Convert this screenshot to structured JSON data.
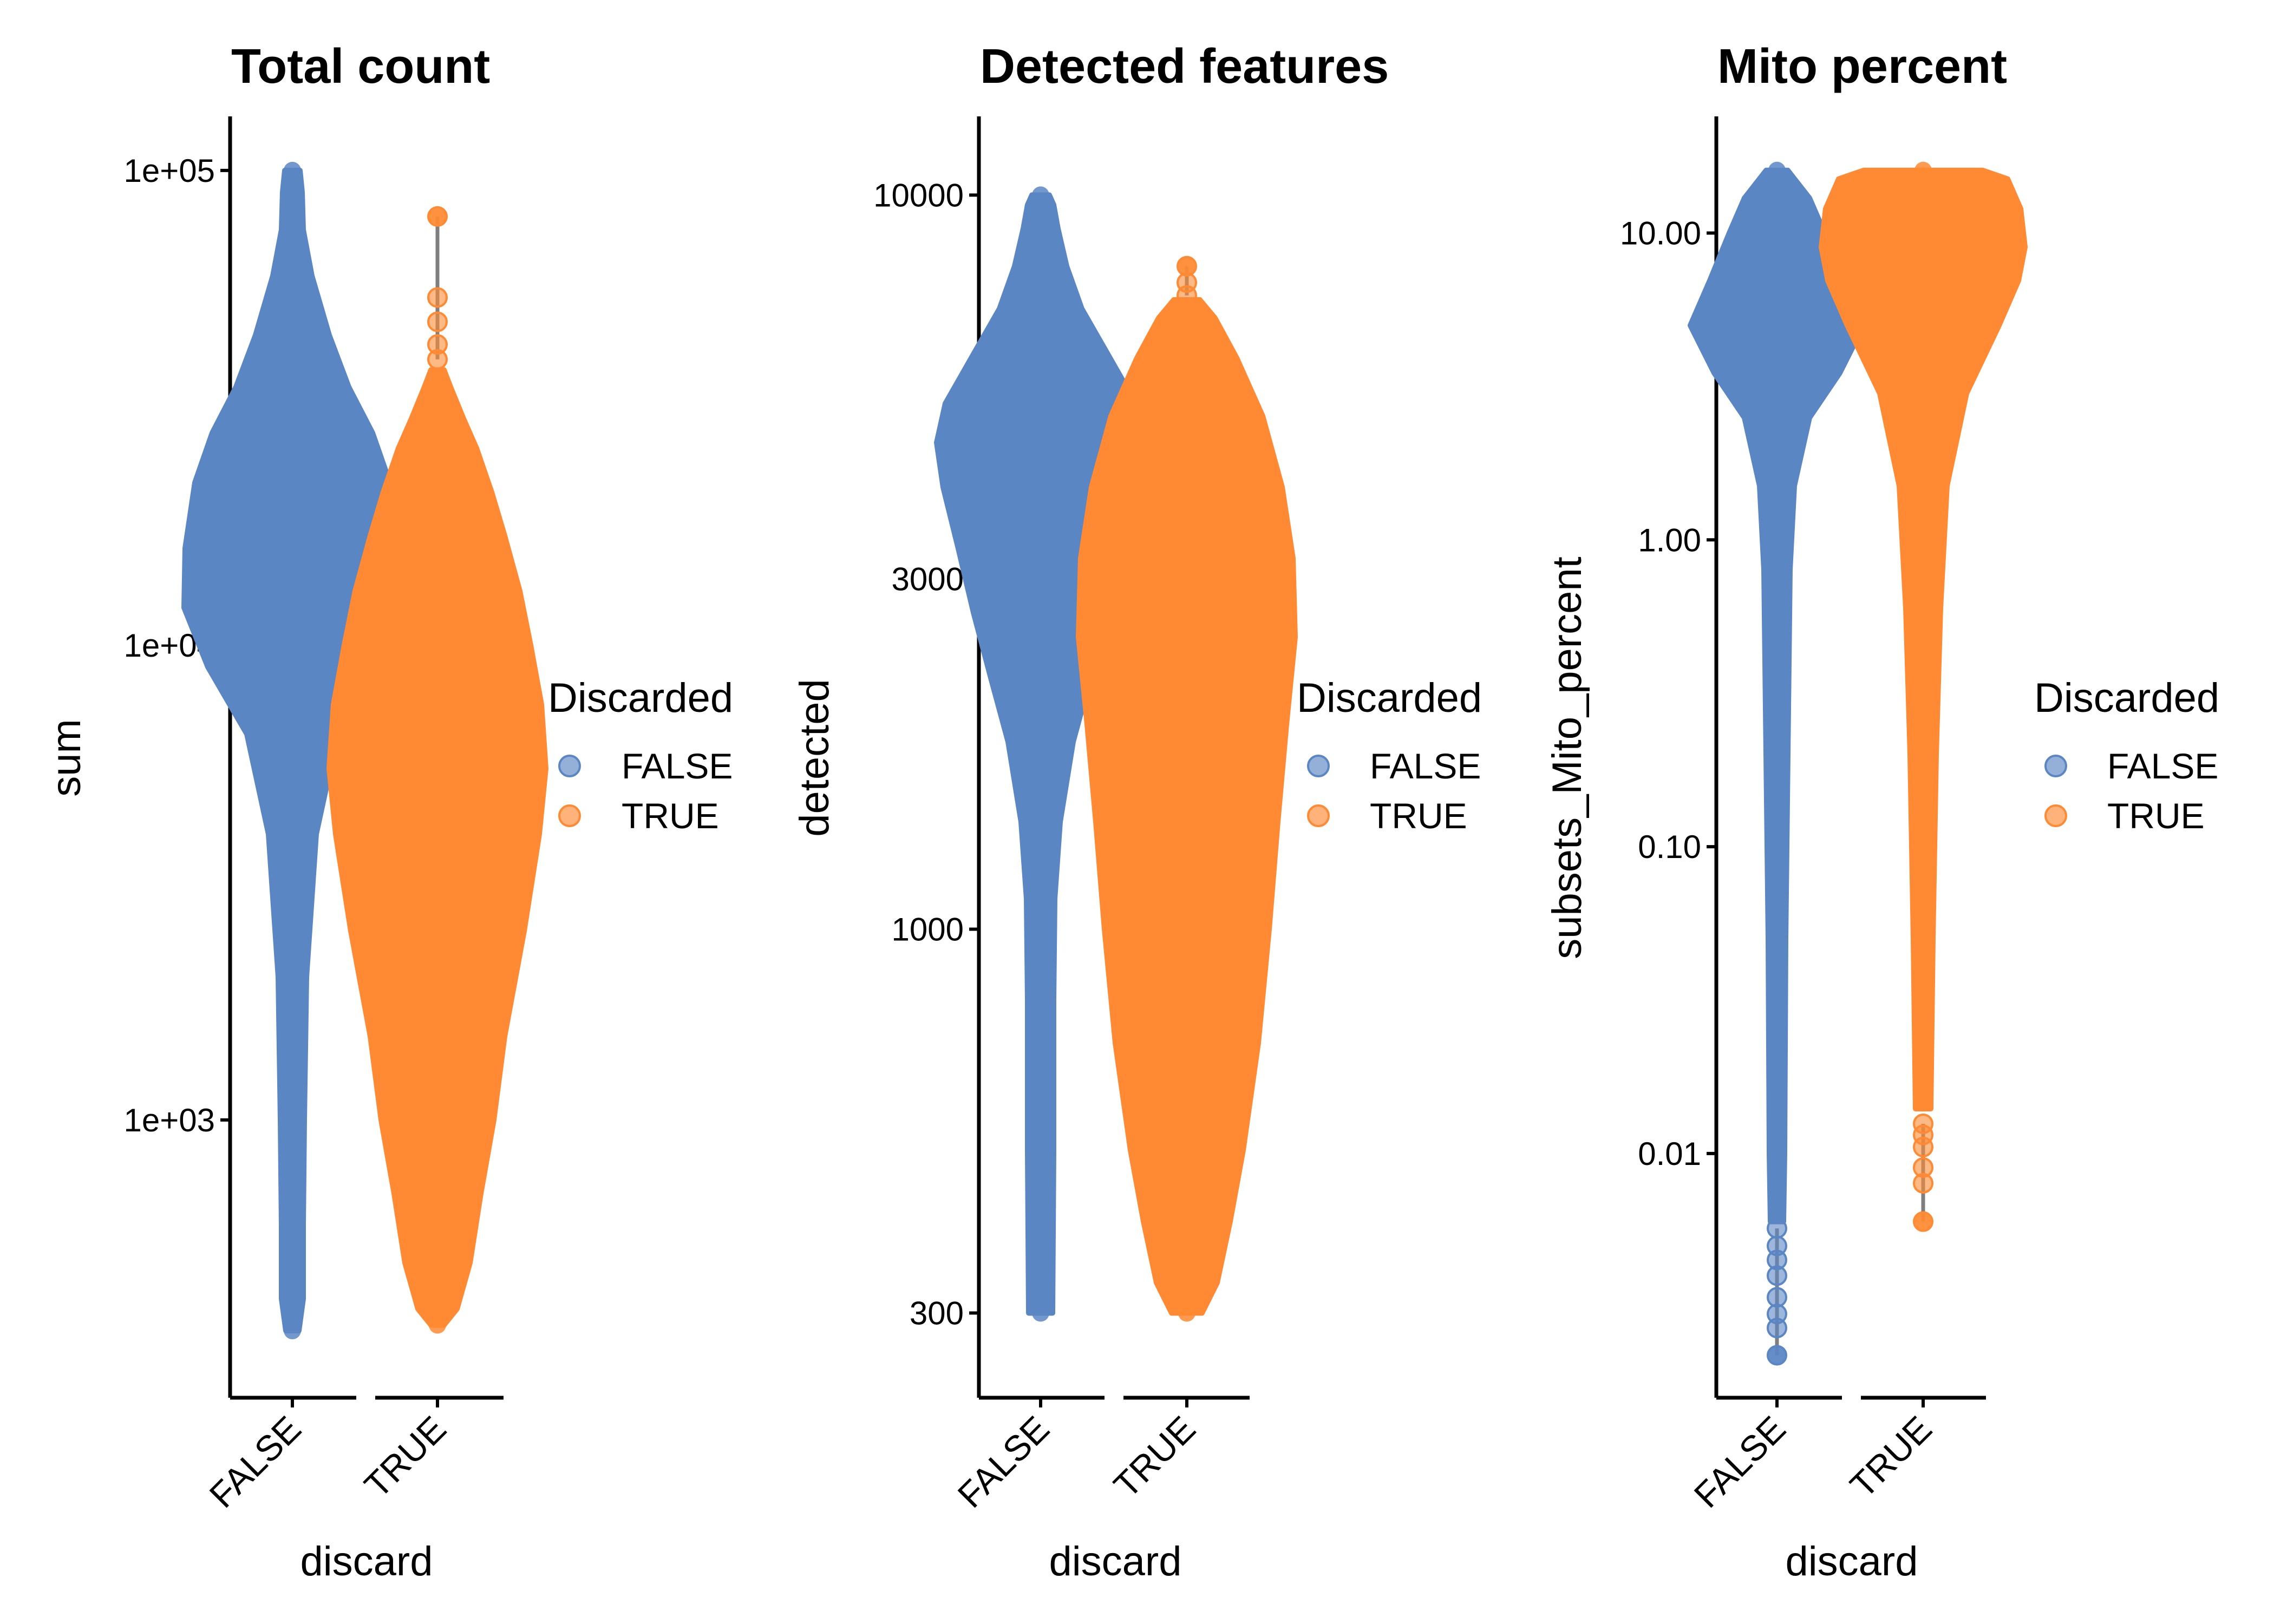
{
  "colors": {
    "false_fill": "#5b86c4",
    "true_fill": "#ff8a33",
    "whisker": "#7f7f7f"
  },
  "chart_data": [
    {
      "type": "violin",
      "title": "Total count",
      "xlabel": "discard",
      "ylabel": "sum",
      "yscale": "log10",
      "ylim": [
        260,
        130000
      ],
      "yticks": [
        1000,
        10000,
        100000
      ],
      "ytick_labels": [
        "1e+03",
        "1e+04",
        "1e+05"
      ],
      "categories": [
        "FALSE",
        "TRUE"
      ],
      "legend": {
        "title": "Discarded",
        "entries": [
          "FALSE",
          "TRUE"
        ],
        "placement": "right"
      },
      "series": [
        {
          "name": "FALSE",
          "min": 360,
          "max": 100000,
          "outliers": [],
          "density": [
            [
              360,
              0.06
            ],
            [
              420,
              0.1
            ],
            [
              600,
              0.1
            ],
            [
              1000,
              0.11
            ],
            [
              2000,
              0.13
            ],
            [
              4000,
              0.22
            ],
            [
              6500,
              0.42
            ],
            [
              9000,
              0.78
            ],
            [
              12000,
              1.0
            ],
            [
              16000,
              0.99
            ],
            [
              22000,
              0.9
            ],
            [
              28000,
              0.74
            ],
            [
              35000,
              0.52
            ],
            [
              45000,
              0.34
            ],
            [
              60000,
              0.18
            ],
            [
              75000,
              0.1
            ],
            [
              90000,
              0.09
            ],
            [
              100000,
              0.07
            ]
          ]
        },
        {
          "name": "TRUE",
          "min": 370,
          "max": 80000,
          "outliers": [
            80000,
            54000,
            48000,
            43000,
            40000
          ],
          "density": [
            [
              370,
              0.06
            ],
            [
              400,
              0.18
            ],
            [
              500,
              0.3
            ],
            [
              700,
              0.4
            ],
            [
              1000,
              0.52
            ],
            [
              1500,
              0.62
            ],
            [
              2500,
              0.8
            ],
            [
              4000,
              0.94
            ],
            [
              5500,
              1.0
            ],
            [
              7500,
              0.96
            ],
            [
              10000,
              0.86
            ],
            [
              13000,
              0.76
            ],
            [
              17000,
              0.62
            ],
            [
              21000,
              0.5
            ],
            [
              26000,
              0.36
            ],
            [
              30000,
              0.24
            ],
            [
              35000,
              0.12
            ],
            [
              38000,
              0.06
            ]
          ]
        }
      ]
    },
    {
      "type": "violin",
      "title": "Detected features",
      "xlabel": "discard",
      "ylabel": "detected",
      "yscale": "log10",
      "ylim": [
        230,
        12800
      ],
      "yticks": [
        300,
        1000,
        3000,
        10000
      ],
      "ytick_labels": [
        "300",
        "1000",
        "3000",
        "10000"
      ],
      "categories": [
        "FALSE",
        "TRUE"
      ],
      "legend": {
        "title": "Discarded",
        "entries": [
          "FALSE",
          "TRUE"
        ],
        "placement": "right"
      },
      "series": [
        {
          "name": "FALSE",
          "min": 300,
          "max": 10000,
          "outliers": [],
          "density": [
            [
              300,
              0.11
            ],
            [
              500,
              0.12
            ],
            [
              800,
              0.12
            ],
            [
              1100,
              0.13
            ],
            [
              1400,
              0.18
            ],
            [
              1800,
              0.3
            ],
            [
              2200,
              0.46
            ],
            [
              2700,
              0.62
            ],
            [
              3300,
              0.76
            ],
            [
              4000,
              0.9
            ],
            [
              4600,
              0.96
            ],
            [
              5200,
              0.88
            ],
            [
              6000,
              0.64
            ],
            [
              7000,
              0.38
            ],
            [
              8000,
              0.24
            ],
            [
              9000,
              0.16
            ],
            [
              9700,
              0.12
            ],
            [
              10000,
              0.08
            ]
          ]
        },
        {
          "name": "TRUE",
          "min": 300,
          "max": 8000,
          "outliers": [
            8000,
            7600,
            7300
          ],
          "density": [
            [
              300,
              0.14
            ],
            [
              330,
              0.28
            ],
            [
              400,
              0.4
            ],
            [
              500,
              0.52
            ],
            [
              700,
              0.66
            ],
            [
              1000,
              0.76
            ],
            [
              1400,
              0.84
            ],
            [
              1900,
              0.92
            ],
            [
              2500,
              1.0
            ],
            [
              3200,
              0.98
            ],
            [
              4000,
              0.88
            ],
            [
              5000,
              0.7
            ],
            [
              6000,
              0.46
            ],
            [
              6800,
              0.26
            ],
            [
              7200,
              0.12
            ]
          ]
        }
      ]
    },
    {
      "type": "violin",
      "title": "Mito percent",
      "xlabel": "discard",
      "ylabel": "subsets_Mito_percent",
      "yscale": "log10",
      "ylim": [
        0.0016,
        24
      ],
      "yticks": [
        0.01,
        0.1,
        1,
        10
      ],
      "ytick_labels": [
        "0.01",
        "0.10",
        "1.00",
        "10.00"
      ],
      "categories": [
        "FALSE",
        "TRUE"
      ],
      "legend": {
        "title": "Discarded",
        "entries": [
          "FALSE",
          "TRUE"
        ],
        "placement": "right"
      },
      "series": [
        {
          "name": "FALSE",
          "min": 0.0022,
          "max": 16,
          "outliers": [
            0.0022,
            0.0027,
            0.003,
            0.0034,
            0.004,
            0.0045,
            0.005,
            0.0057
          ],
          "density": [
            [
              0.006,
              0.06
            ],
            [
              0.01,
              0.07
            ],
            [
              0.05,
              0.08
            ],
            [
              0.2,
              0.1
            ],
            [
              0.8,
              0.12
            ],
            [
              1.5,
              0.16
            ],
            [
              2.5,
              0.3
            ],
            [
              3.5,
              0.58
            ],
            [
              5,
              0.8
            ],
            [
              7,
              0.62
            ],
            [
              10,
              0.44
            ],
            [
              13,
              0.3
            ],
            [
              16,
              0.1
            ]
          ]
        },
        {
          "name": "TRUE",
          "min": 0.006,
          "max": 16,
          "outliers": [
            0.006,
            0.008,
            0.009,
            0.0105,
            0.0115,
            0.0125
          ],
          "density": [
            [
              0.014,
              0.07
            ],
            [
              0.05,
              0.09
            ],
            [
              0.2,
              0.12
            ],
            [
              0.6,
              0.16
            ],
            [
              1.5,
              0.22
            ],
            [
              3,
              0.4
            ],
            [
              5,
              0.7
            ],
            [
              7,
              0.88
            ],
            [
              9,
              0.94
            ],
            [
              12,
              0.9
            ],
            [
              15,
              0.78
            ],
            [
              16,
              0.55
            ]
          ]
        }
      ]
    }
  ]
}
